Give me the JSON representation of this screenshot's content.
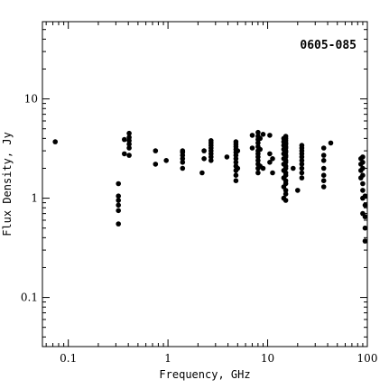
{
  "chart_data": {
    "type": "scatter",
    "title": "0605-085",
    "xlabel": "Frequency, GHz",
    "ylabel": "Flux Density, Jy",
    "xscale": "log",
    "yscale": "log",
    "xlim": [
      0.055,
      100
    ],
    "ylim": [
      0.032,
      60
    ],
    "xticks": [
      {
        "value": 0.1,
        "label": "0.1"
      },
      {
        "value": 1,
        "label": "1"
      },
      {
        "value": 10,
        "label": "10"
      },
      {
        "value": 100,
        "label": "100"
      }
    ],
    "yticks": [
      {
        "value": 0.1,
        "label": "0.1"
      },
      {
        "value": 1,
        "label": "1"
      },
      {
        "value": 10,
        "label": "10"
      }
    ],
    "grid": false,
    "legend": "none",
    "color": "#000000",
    "points": [
      [
        0.074,
        3.7
      ],
      [
        0.318,
        0.55
      ],
      [
        0.318,
        0.75
      ],
      [
        0.318,
        0.85
      ],
      [
        0.318,
        0.95
      ],
      [
        0.318,
        1.05
      ],
      [
        0.318,
        1.4
      ],
      [
        0.365,
        2.8
      ],
      [
        0.365,
        3.9
      ],
      [
        0.408,
        2.7
      ],
      [
        0.408,
        3.2
      ],
      [
        0.408,
        3.5
      ],
      [
        0.408,
        3.8
      ],
      [
        0.408,
        4.1
      ],
      [
        0.408,
        4.5
      ],
      [
        0.75,
        2.2
      ],
      [
        0.75,
        3.0
      ],
      [
        0.96,
        2.4
      ],
      [
        1.4,
        2.0
      ],
      [
        1.4,
        2.3
      ],
      [
        1.4,
        2.5
      ],
      [
        1.4,
        2.7
      ],
      [
        1.4,
        2.9
      ],
      [
        1.4,
        3.0
      ],
      [
        2.2,
        1.8
      ],
      [
        2.3,
        2.5
      ],
      [
        2.3,
        3.0
      ],
      [
        2.7,
        2.4
      ],
      [
        2.7,
        2.6
      ],
      [
        2.7,
        2.8
      ],
      [
        2.7,
        3.0
      ],
      [
        2.7,
        3.2
      ],
      [
        2.7,
        3.4
      ],
      [
        2.7,
        3.6
      ],
      [
        2.7,
        3.8
      ],
      [
        3.9,
        2.6
      ],
      [
        4.8,
        1.5
      ],
      [
        4.8,
        1.7
      ],
      [
        4.8,
        1.9
      ],
      [
        4.8,
        2.1
      ],
      [
        4.8,
        2.3
      ],
      [
        4.8,
        2.5
      ],
      [
        4.8,
        2.7
      ],
      [
        4.8,
        2.9
      ],
      [
        4.8,
        3.1
      ],
      [
        4.8,
        3.3
      ],
      [
        4.8,
        3.5
      ],
      [
        4.8,
        3.7
      ],
      [
        5.0,
        2.0
      ],
      [
        5.0,
        3.0
      ],
      [
        7.0,
        3.2
      ],
      [
        7.0,
        4.3
      ],
      [
        8.0,
        1.8
      ],
      [
        8.0,
        2.0
      ],
      [
        8.0,
        2.2
      ],
      [
        8.0,
        2.4
      ],
      [
        8.0,
        2.6
      ],
      [
        8.0,
        2.8
      ],
      [
        8.0,
        3.0
      ],
      [
        8.0,
        3.3
      ],
      [
        8.0,
        3.6
      ],
      [
        8.0,
        3.9
      ],
      [
        8.0,
        4.2
      ],
      [
        8.0,
        4.6
      ],
      [
        8.4,
        2.1
      ],
      [
        8.4,
        3.1
      ],
      [
        8.4,
        4.0
      ],
      [
        9.0,
        2.0
      ],
      [
        9.0,
        4.4
      ],
      [
        10.5,
        2.3
      ],
      [
        10.5,
        2.8
      ],
      [
        10.5,
        4.3
      ],
      [
        11.2,
        1.8
      ],
      [
        11.2,
        2.5
      ],
      [
        14.5,
        1.0
      ],
      [
        14.5,
        1.3
      ],
      [
        14.5,
        1.6
      ],
      [
        14.5,
        1.9
      ],
      [
        14.5,
        2.2
      ],
      [
        14.5,
        2.5
      ],
      [
        14.5,
        2.8
      ],
      [
        14.5,
        3.1
      ],
      [
        14.5,
        3.4
      ],
      [
        14.5,
        3.7
      ],
      [
        14.5,
        4.0
      ],
      [
        15.2,
        0.95
      ],
      [
        15.2,
        1.1
      ],
      [
        15.2,
        1.2
      ],
      [
        15.2,
        1.4
      ],
      [
        15.2,
        1.5
      ],
      [
        15.2,
        1.7
      ],
      [
        15.2,
        1.8
      ],
      [
        15.2,
        2.0
      ],
      [
        15.2,
        2.1
      ],
      [
        15.2,
        2.3
      ],
      [
        15.2,
        2.4
      ],
      [
        15.2,
        2.6
      ],
      [
        15.2,
        2.7
      ],
      [
        15.2,
        2.9
      ],
      [
        15.2,
        3.0
      ],
      [
        15.2,
        3.2
      ],
      [
        15.2,
        3.3
      ],
      [
        15.2,
        3.5
      ],
      [
        15.2,
        3.6
      ],
      [
        15.2,
        3.8
      ],
      [
        15.2,
        4.0
      ],
      [
        15.2,
        4.2
      ],
      [
        18.0,
        2.0
      ],
      [
        20.0,
        1.2
      ],
      [
        22.0,
        1.6
      ],
      [
        22.0,
        1.8
      ],
      [
        22.0,
        2.0
      ],
      [
        22.0,
        2.2
      ],
      [
        22.0,
        2.4
      ],
      [
        22.0,
        2.6
      ],
      [
        22.0,
        2.8
      ],
      [
        22.0,
        3.0
      ],
      [
        22.0,
        3.2
      ],
      [
        22.0,
        3.4
      ],
      [
        36.5,
        1.3
      ],
      [
        36.5,
        1.5
      ],
      [
        36.5,
        1.7
      ],
      [
        36.5,
        2.0
      ],
      [
        36.5,
        2.4
      ],
      [
        36.5,
        2.7
      ],
      [
        36.5,
        3.2
      ],
      [
        43.0,
        3.6
      ],
      [
        86.0,
        1.6
      ],
      [
        86.0,
        1.9
      ],
      [
        86.0,
        2.2
      ],
      [
        86.0,
        2.5
      ],
      [
        90.0,
        0.7
      ],
      [
        90.0,
        1.0
      ],
      [
        90.0,
        1.2
      ],
      [
        90.0,
        1.4
      ],
      [
        90.0,
        1.7
      ],
      [
        90.0,
        2.0
      ],
      [
        90.0,
        2.3
      ],
      [
        90.0,
        2.6
      ],
      [
        95.0,
        0.37
      ],
      [
        95.0,
        0.5
      ],
      [
        95.0,
        0.65
      ],
      [
        95.0,
        0.85
      ],
      [
        95.0,
        1.05
      ]
    ]
  }
}
